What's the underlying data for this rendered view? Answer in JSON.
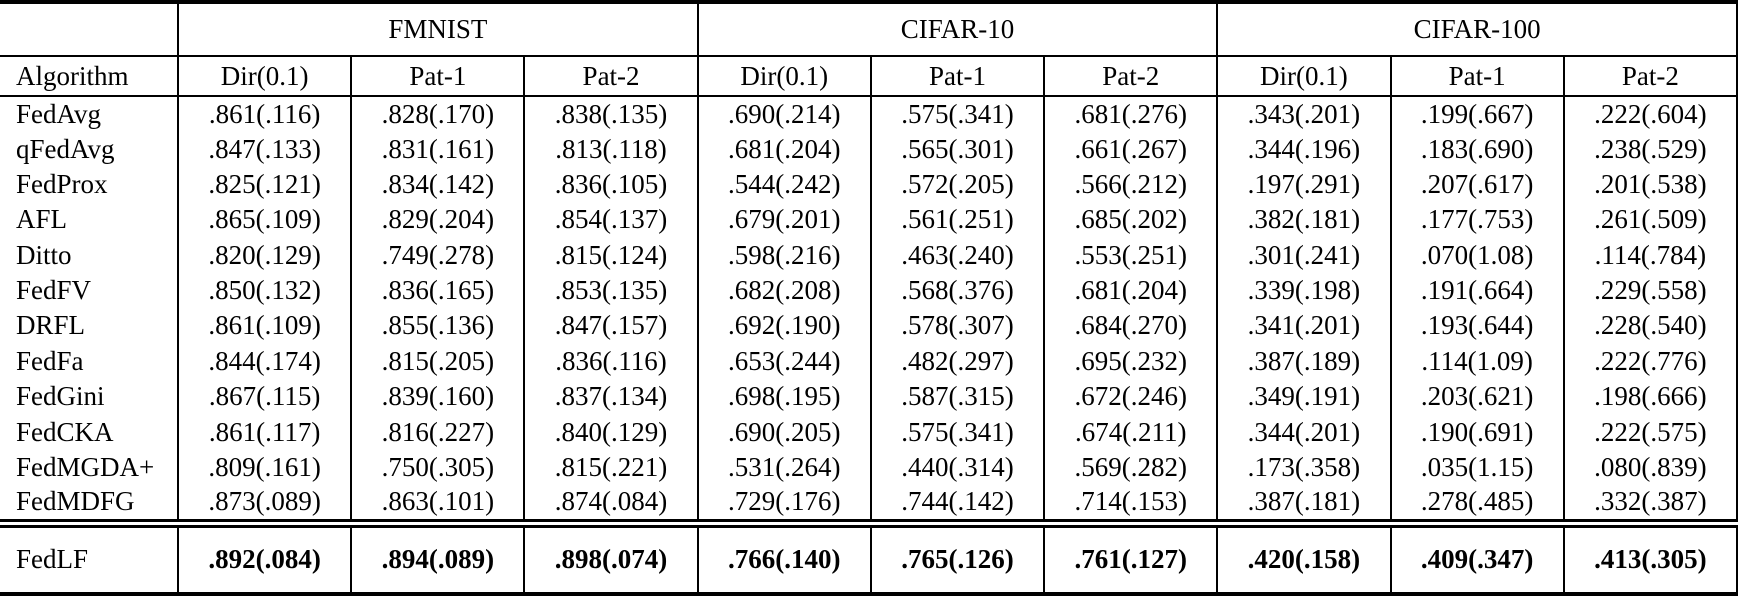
{
  "table": {
    "algorithm_header": "Algorithm",
    "dataset_groups": [
      "FMNIST",
      "CIFAR-10",
      "CIFAR-100"
    ],
    "subcolumns": [
      "Dir(0.1)",
      "Pat-1",
      "Pat-2"
    ],
    "rows": [
      {
        "algorithm": "FedAvg",
        "values": [
          ".861(.116)",
          ".828(.170)",
          ".838(.135)",
          ".690(.214)",
          ".575(.341)",
          ".681(.276)",
          ".343(.201)",
          ".199(.667)",
          ".222(.604)"
        ]
      },
      {
        "algorithm": "qFedAvg",
        "values": [
          ".847(.133)",
          ".831(.161)",
          ".813(.118)",
          ".681(.204)",
          ".565(.301)",
          ".661(.267)",
          ".344(.196)",
          ".183(.690)",
          ".238(.529)"
        ]
      },
      {
        "algorithm": "FedProx",
        "values": [
          ".825(.121)",
          ".834(.142)",
          ".836(.105)",
          ".544(.242)",
          ".572(.205)",
          ".566(.212)",
          ".197(.291)",
          ".207(.617)",
          ".201(.538)"
        ]
      },
      {
        "algorithm": "AFL",
        "values": [
          ".865(.109)",
          ".829(.204)",
          ".854(.137)",
          ".679(.201)",
          ".561(.251)",
          ".685(.202)",
          ".382(.181)",
          ".177(.753)",
          ".261(.509)"
        ]
      },
      {
        "algorithm": "Ditto",
        "values": [
          ".820(.129)",
          ".749(.278)",
          ".815(.124)",
          ".598(.216)",
          ".463(.240)",
          ".553(.251)",
          ".301(.241)",
          ".070(1.08)",
          ".114(.784)"
        ]
      },
      {
        "algorithm": "FedFV",
        "values": [
          ".850(.132)",
          ".836(.165)",
          ".853(.135)",
          ".682(.208)",
          ".568(.376)",
          ".681(.204)",
          ".339(.198)",
          ".191(.664)",
          ".229(.558)"
        ]
      },
      {
        "algorithm": "DRFL",
        "values": [
          ".861(.109)",
          ".855(.136)",
          ".847(.157)",
          ".692(.190)",
          ".578(.307)",
          ".684(.270)",
          ".341(.201)",
          ".193(.644)",
          ".228(.540)"
        ]
      },
      {
        "algorithm": "FedFa",
        "values": [
          ".844(.174)",
          ".815(.205)",
          ".836(.116)",
          ".653(.244)",
          ".482(.297)",
          ".695(.232)",
          ".387(.189)",
          ".114(1.09)",
          ".222(.776)"
        ]
      },
      {
        "algorithm": "FedGini",
        "values": [
          ".867(.115)",
          ".839(.160)",
          ".837(.134)",
          ".698(.195)",
          ".587(.315)",
          ".672(.246)",
          ".349(.191)",
          ".203(.621)",
          ".198(.666)"
        ]
      },
      {
        "algorithm": "FedCKA",
        "values": [
          ".861(.117)",
          ".816(.227)",
          ".840(.129)",
          ".690(.205)",
          ".575(.341)",
          ".674(.211)",
          ".344(.201)",
          ".190(.691)",
          ".222(.575)"
        ]
      },
      {
        "algorithm": "FedMGDA+",
        "values": [
          ".809(.161)",
          ".750(.305)",
          ".815(.221)",
          ".531(.264)",
          ".440(.314)",
          ".569(.282)",
          ".173(.358)",
          ".035(1.15)",
          ".080(.839)"
        ]
      },
      {
        "algorithm": "FedMDFG",
        "values": [
          ".873(.089)",
          ".863(.101)",
          ".874(.084)",
          ".729(.176)",
          ".744(.142)",
          ".714(.153)",
          ".387(.181)",
          ".278(.485)",
          ".332(.387)"
        ]
      }
    ],
    "final_row": {
      "algorithm": "FedLF",
      "values": [
        ".892(.084)",
        ".894(.089)",
        ".898(.074)",
        ".766(.140)",
        ".765(.126)",
        ".761(.127)",
        ".420(.158)",
        ".409(.347)",
        ".413(.305)"
      ]
    }
  }
}
